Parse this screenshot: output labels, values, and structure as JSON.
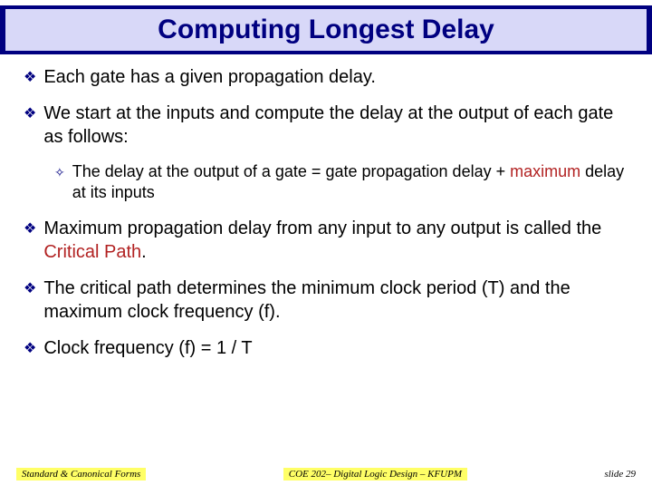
{
  "title": "Computing Longest Delay",
  "bullets": {
    "b1": "Each gate has a given propagation delay.",
    "b2": "We start at the inputs and compute the delay at the output of each gate as follows:",
    "b3a": "The delay at the output of a gate = gate propagation delay + ",
    "b3b": "maximum",
    "b3c": " delay at its inputs",
    "b4a": "Maximum propagation delay from any input to any output is called the ",
    "b4b": "Critical Path",
    "b4c": ".",
    "b5": "The critical path determines the minimum clock period (T) and the maximum clock frequency (f).",
    "b6": "Clock frequency (f) = 1 / T"
  },
  "footer": {
    "left": "Standard & Canonical Forms",
    "center": "COE 202– Digital Logic Design – KFUPM",
    "right": "slide 29"
  },
  "colors": {
    "title_bg": "#000080",
    "title_inner_bg": "#d8d8f8",
    "title_text": "#000080",
    "highlight": "#b22222",
    "footer_bg": "#ffff66"
  }
}
